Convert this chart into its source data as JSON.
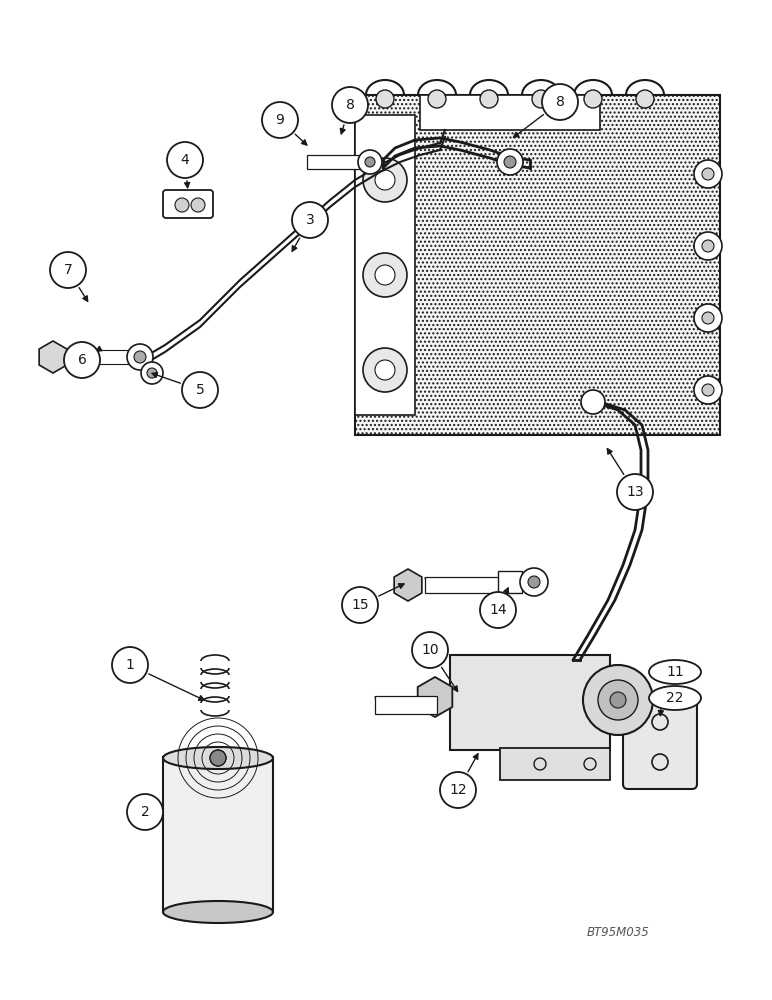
{
  "bg_color": "#ffffff",
  "line_color": "#1a1a1a",
  "fig_width": 7.72,
  "fig_height": 10.0,
  "dpi": 100,
  "watermark": "BT95M035"
}
